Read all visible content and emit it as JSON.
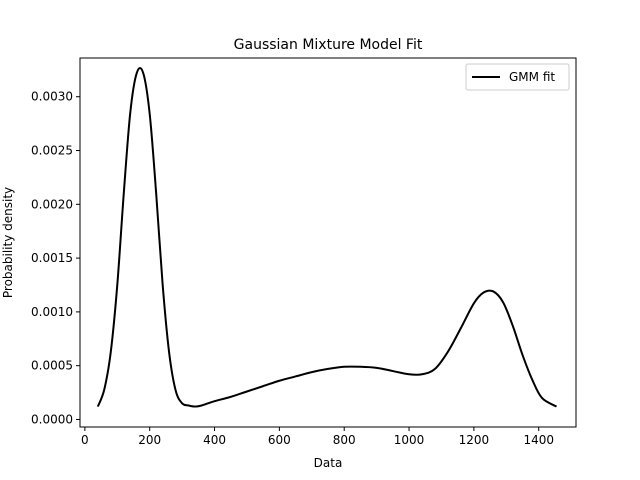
{
  "chart_data": {
    "type": "line",
    "title": "Gaussian Mixture Model Fit",
    "xlabel": "Data",
    "ylabel": "Probability density",
    "xlim": [
      -15,
      1515
    ],
    "ylim": [
      -7e-05,
      0.00336
    ],
    "xticks": [
      0,
      200,
      400,
      600,
      800,
      1000,
      1200,
      1400
    ],
    "xtick_labels": [
      "0",
      "200",
      "400",
      "600",
      "800",
      "1000",
      "1200",
      "1400"
    ],
    "yticks": [
      0.0,
      0.0005,
      0.001,
      0.0015,
      0.002,
      0.0025,
      0.003
    ],
    "ytick_labels": [
      "0.0000",
      "0.0005",
      "0.0010",
      "0.0015",
      "0.0020",
      "0.0025",
      "0.0030"
    ],
    "grid": false,
    "legend_position": "top-right",
    "series": [
      {
        "name": "GMM fit",
        "color": "#000000",
        "x": [
          40,
          60,
          80,
          100,
          120,
          140,
          160,
          180,
          200,
          220,
          240,
          260,
          280,
          300,
          320,
          340,
          360,
          380,
          400,
          450,
          500,
          550,
          600,
          650,
          700,
          750,
          800,
          850,
          900,
          950,
          1000,
          1040,
          1080,
          1120,
          1160,
          1200,
          1230,
          1260,
          1290,
          1320,
          1350,
          1380,
          1410,
          1455
        ],
        "y": [
          0.00012,
          0.00028,
          0.00063,
          0.00125,
          0.0021,
          0.00285,
          0.00322,
          0.00322,
          0.00284,
          0.0021,
          0.00125,
          0.00062,
          0.00027,
          0.00015,
          0.00013,
          0.00012,
          0.00013,
          0.00015,
          0.00017,
          0.00021,
          0.00026,
          0.00031,
          0.00036,
          0.0004,
          0.00044,
          0.00047,
          0.00049,
          0.00049,
          0.00048,
          0.00045,
          0.00042,
          0.00042,
          0.00047,
          0.00063,
          0.00085,
          0.00108,
          0.00118,
          0.00119,
          0.00109,
          0.00087,
          0.0006,
          0.00037,
          0.0002,
          0.00012
        ]
      }
    ]
  }
}
